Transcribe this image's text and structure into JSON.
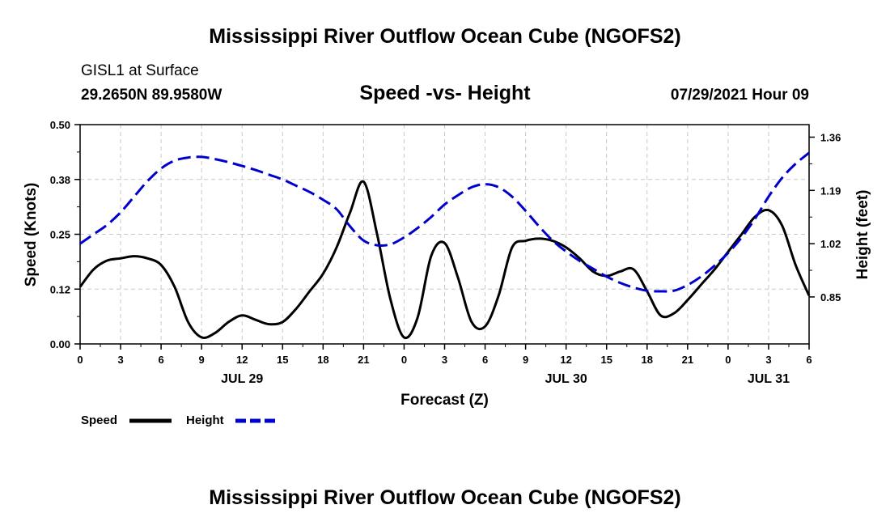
{
  "header": {
    "title": "Mississippi River Outflow Ocean Cube (NGOFS2)",
    "station": "GISL1 at Surface",
    "coordinates": "29.2650N  89.9580W",
    "subtitle": "Speed -vs- Height",
    "datetime": "07/29/2021 Hour 09"
  },
  "footer": {
    "title": "Mississippi River Outflow Ocean Cube (NGOFS2)"
  },
  "chart_data": {
    "type": "line",
    "title": "Speed -vs- Height",
    "xlabel": "Forecast (Z)",
    "ylabel": "Speed (Knots)",
    "y2label": "Height (feet)",
    "x_range": [
      0,
      54
    ],
    "ylim": [
      0,
      0.5
    ],
    "y2lim": [
      0.7,
      1.4
    ],
    "x_tick_values": [
      0,
      3,
      6,
      9,
      12,
      15,
      18,
      21,
      24,
      27,
      30,
      33,
      36,
      39,
      42,
      45,
      48,
      51,
      54
    ],
    "x_tick_labels": [
      "0",
      "3",
      "6",
      "9",
      "12",
      "15",
      "18",
      "21",
      "0",
      "3",
      "6",
      "9",
      "12",
      "15",
      "18",
      "21",
      "0",
      "3",
      "6"
    ],
    "y_tick_values": [
      0,
      0.125,
      0.25,
      0.375,
      0.5
    ],
    "y_tick_labels": [
      "0.00",
      "0.12",
      "0.25",
      "0.38",
      "0.50"
    ],
    "y2_tick_values": [
      0.85,
      1.02,
      1.19,
      1.36
    ],
    "y2_tick_labels": [
      "0.85",
      "1.02",
      "1.19",
      "1.36"
    ],
    "date_labels": [
      {
        "label": "JUL 29",
        "x": 12
      },
      {
        "label": "JUL 30",
        "x": 36
      },
      {
        "label": "JUL 31",
        "x": 51
      }
    ],
    "grid": true,
    "legend_position": "bottom-left",
    "series": [
      {
        "name": "Speed",
        "axis": "left",
        "color": "#000000",
        "dash": "solid",
        "x": [
          0,
          1,
          2,
          3,
          4,
          5,
          6,
          7,
          8,
          9,
          10,
          11,
          12,
          13,
          14,
          15,
          16,
          17,
          18,
          19,
          20,
          21,
          22,
          23,
          24,
          25,
          26,
          27,
          28,
          29,
          30,
          31,
          32,
          33,
          34,
          35,
          36,
          37,
          38,
          39,
          40,
          41,
          42,
          43,
          44,
          45,
          46,
          47,
          48,
          49,
          50,
          51,
          52,
          53,
          54
        ],
        "values": [
          0.13,
          0.17,
          0.19,
          0.195,
          0.2,
          0.195,
          0.18,
          0.13,
          0.05,
          0.015,
          0.025,
          0.05,
          0.065,
          0.055,
          0.045,
          0.05,
          0.08,
          0.12,
          0.16,
          0.22,
          0.3,
          0.37,
          0.25,
          0.1,
          0.015,
          0.06,
          0.2,
          0.23,
          0.15,
          0.05,
          0.04,
          0.11,
          0.22,
          0.235,
          0.24,
          0.235,
          0.22,
          0.195,
          0.165,
          0.155,
          0.165,
          0.17,
          0.12,
          0.065,
          0.07,
          0.1,
          0.135,
          0.17,
          0.21,
          0.25,
          0.29,
          0.305,
          0.27,
          0.18,
          0.11
        ]
      },
      {
        "name": "Height",
        "axis": "right",
        "color": "#0000cc",
        "dash": "dashed",
        "x": [
          0,
          1,
          2,
          3,
          4,
          5,
          6,
          7,
          8,
          9,
          10,
          11,
          12,
          13,
          14,
          15,
          16,
          17,
          18,
          19,
          20,
          21,
          22,
          23,
          24,
          25,
          26,
          27,
          28,
          29,
          30,
          31,
          32,
          33,
          34,
          35,
          36,
          37,
          38,
          39,
          40,
          41,
          42,
          43,
          44,
          45,
          46,
          47,
          48,
          49,
          50,
          51,
          52,
          53,
          54
        ],
        "values": [
          1.02,
          1.05,
          1.08,
          1.12,
          1.17,
          1.22,
          1.26,
          1.285,
          1.295,
          1.297,
          1.29,
          1.28,
          1.268,
          1.255,
          1.24,
          1.225,
          1.205,
          1.185,
          1.16,
          1.13,
          1.075,
          1.03,
          1.015,
          1.018,
          1.04,
          1.07,
          1.105,
          1.145,
          1.175,
          1.2,
          1.21,
          1.2,
          1.17,
          1.125,
          1.075,
          1.03,
          0.995,
          0.965,
          0.94,
          0.915,
          0.895,
          0.88,
          0.87,
          0.868,
          0.87,
          0.888,
          0.915,
          0.95,
          0.99,
          1.04,
          1.1,
          1.17,
          1.23,
          1.275,
          1.31
        ]
      }
    ]
  }
}
